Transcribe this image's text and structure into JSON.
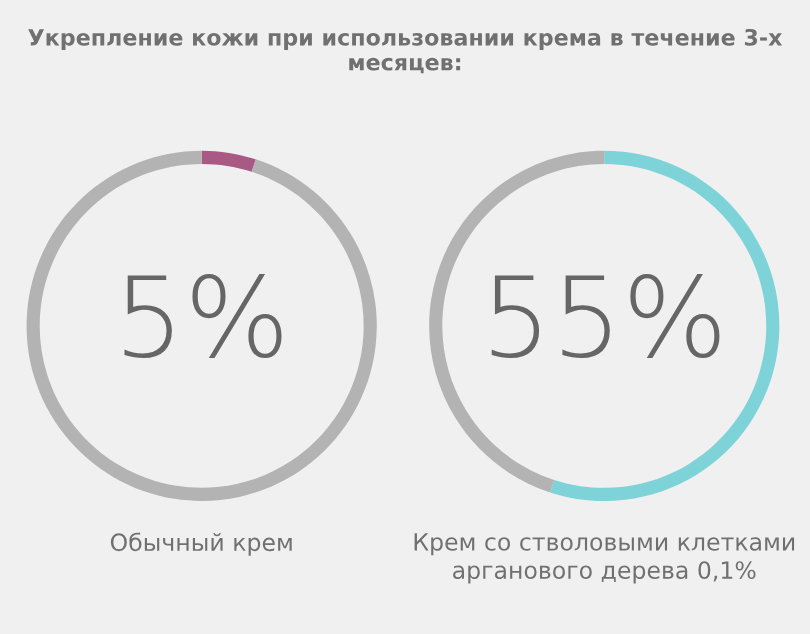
{
  "chart_data": [
    {
      "type": "donut",
      "title": "Укрепление кожи при использовании крема в течение 3-х месяцев:",
      "xlabel": "Обычный крем",
      "categories": [
        null,
        null
      ],
      "values": [
        5,
        95
      ],
      "colors": [
        "#a85a84",
        "#b3b3b3"
      ],
      "value_labels": [
        "5%",
        null
      ]
    },
    {
      "type": "donut",
      "xlabel": "Крем со стволовыми клетками\nарганового дерева 0,1%",
      "categories": [
        null,
        null
      ],
      "values": [
        55,
        45
      ],
      "colors": [
        "#7dd3d8",
        "#b3b3b3"
      ],
      "value_labels": [
        "55%",
        null
      ]
    }
  ]
}
